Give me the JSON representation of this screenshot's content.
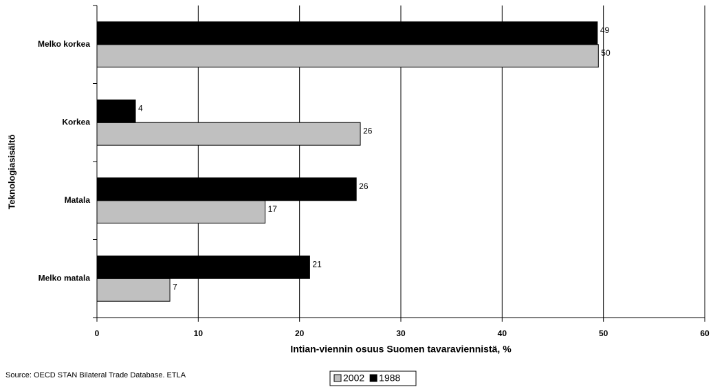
{
  "chart_data": {
    "type": "hbar",
    "xlabel": "Intian-viennin osuus Suomen tavaraviennistä, %",
    "ylabel": "Teknologiasisältö",
    "source": "Source: OECD STAN Bilateral Trade Database. ETLA",
    "categories": [
      "Melko korkea",
      "Korkea",
      "Matala",
      "Melko matala"
    ],
    "series": [
      {
        "name": "2002",
        "color": "#c0c0c0",
        "values": [
          49.5,
          26.0,
          16.6,
          7.2
        ],
        "value_labels": [
          "50",
          "26",
          "17",
          "7"
        ]
      },
      {
        "name": "1988",
        "color": "#000000",
        "values": [
          49.4,
          3.8,
          25.6,
          21.0
        ],
        "value_labels": [
          "49",
          "4",
          "26",
          "21"
        ]
      }
    ],
    "xlim": [
      0,
      60
    ],
    "xticks": [
      0,
      10,
      20,
      30,
      40,
      50,
      60
    ],
    "grid": true
  }
}
